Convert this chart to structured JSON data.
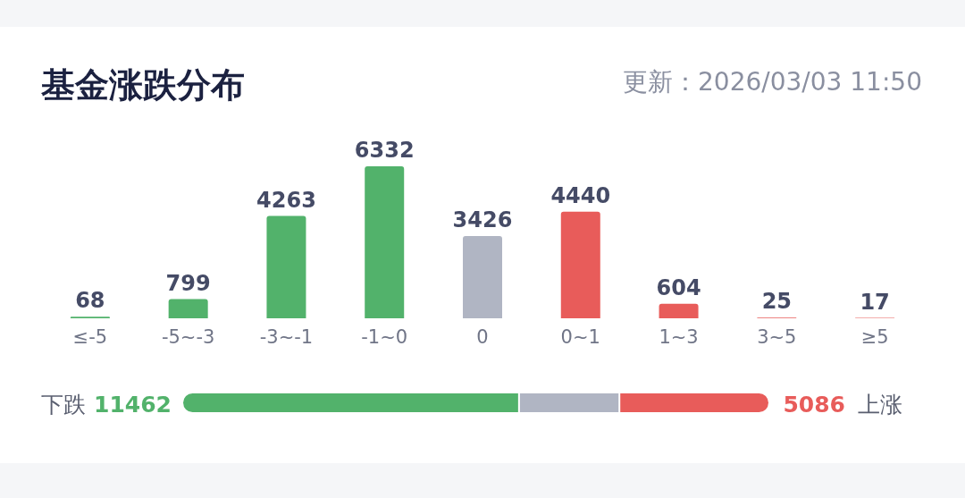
{
  "chart_data": [
    {
      "type": "bar",
      "title": "基金涨跌分布",
      "subtitle": "更新：2026/03/03 11:50",
      "categories": [
        "≤-5",
        "-5~-3",
        "-3~-1",
        "-1~0",
        "0",
        "0~1",
        "1~3",
        "3~5",
        "≥5"
      ],
      "values": [
        68,
        799,
        4263,
        6332,
        3426,
        4440,
        604,
        25,
        17
      ],
      "colors": [
        "#52b26b",
        "#52b26b",
        "#52b26b",
        "#52b26b",
        "#b0b5c3",
        "#e85c5a",
        "#e85c5a",
        "#e85c5a",
        "#e85c5a"
      ],
      "data_labels": true
    },
    {
      "type": "bar",
      "orientation": "horizontal",
      "stacked": true,
      "annotations": [
        "下跌",
        "上涨"
      ],
      "series": [
        {
          "color": "#52b26b",
          "values": [
            11462
          ],
          "value_labels": [
            "11462"
          ]
        },
        {
          "color": "#b0b5c3",
          "values": [
            3426
          ],
          "value_labels": [
            null
          ]
        },
        {
          "color": "#e85c5a",
          "values": [
            5086
          ],
          "value_labels": [
            "5086"
          ]
        }
      ]
    }
  ]
}
